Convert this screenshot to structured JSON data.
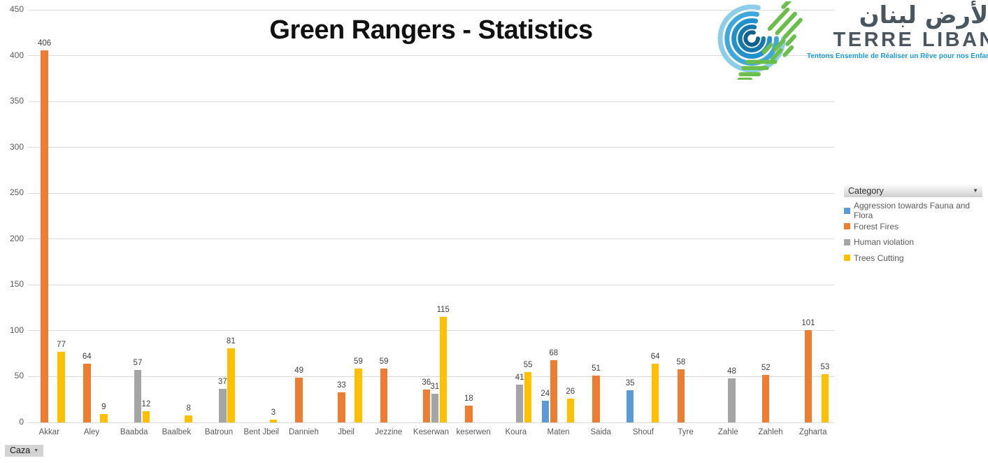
{
  "title": "Green Rangers - Statistics",
  "logo": {
    "arabic": "الأرض لبنان",
    "name": "TERRE LIBAN",
    "tagline": "Tentons Ensemble de Réaliser un Rêve pour nos Enfants",
    "colors": {
      "text": "#49555f",
      "tagline_blue": "#1f9ad6",
      "green": "#6abf4b",
      "blue_outer": "#8ccde9",
      "blue_mid": "#3fa7dc",
      "blue_deep": "#2191cb",
      "blue_dark": "#1878ad",
      "blue_core": "#0f628f"
    }
  },
  "legend": {
    "header": "Category",
    "items": [
      {
        "label": "Aggression towards Fauna and Flora",
        "color": "#5B9BD5"
      },
      {
        "label": "Forest Fires",
        "color": "#ED7D31"
      },
      {
        "label": "Human violation",
        "color": "#A5A5A5"
      },
      {
        "label": "Trees Cutting",
        "color": "#FFC000"
      }
    ]
  },
  "filter_button": {
    "label": "Caza"
  },
  "chart_data": {
    "type": "bar",
    "title": "Green Rangers - Statistics",
    "categories": [
      "Akkar",
      "Aley",
      "Baabda",
      "Baalbek",
      "Batroun",
      "Bent Jbeil",
      "Dannieh",
      "Jbeil",
      "Jezzine",
      "Keserwan",
      "keserwen",
      "Koura",
      "Maten",
      "Saida",
      "Shouf",
      "Tyre",
      "Zahle",
      "Zahleh",
      "Zgharta"
    ],
    "series": [
      {
        "name": "Aggression towards Fauna and Flora",
        "color": "#5B9BD5",
        "values": [
          null,
          null,
          null,
          null,
          null,
          null,
          null,
          null,
          null,
          null,
          null,
          null,
          24,
          null,
          35,
          null,
          null,
          null,
          null
        ]
      },
      {
        "name": "Forest Fires",
        "color": "#ED7D31",
        "values": [
          406,
          64,
          null,
          null,
          null,
          null,
          49,
          33,
          59,
          36,
          18,
          null,
          68,
          51,
          null,
          58,
          null,
          52,
          101
        ]
      },
      {
        "name": "Human violation",
        "color": "#A5A5A5",
        "values": [
          null,
          null,
          57,
          null,
          37,
          null,
          null,
          null,
          null,
          31,
          null,
          41,
          null,
          null,
          null,
          null,
          48,
          null,
          null
        ]
      },
      {
        "name": "Trees Cutting",
        "color": "#FFC000",
        "values": [
          77,
          9,
          12,
          8,
          81,
          3,
          null,
          59,
          null,
          115,
          null,
          55,
          26,
          null,
          64,
          null,
          null,
          null,
          53
        ]
      }
    ],
    "xlabel": "Caza",
    "ylabel": "",
    "ylim": [
      0,
      450
    ],
    "yticks": [
      0,
      50,
      100,
      150,
      200,
      250,
      300,
      350,
      400,
      450
    ],
    "grid": true,
    "data_labels": true,
    "legend_position": "right",
    "gridline_color": "#d9d9d9"
  }
}
